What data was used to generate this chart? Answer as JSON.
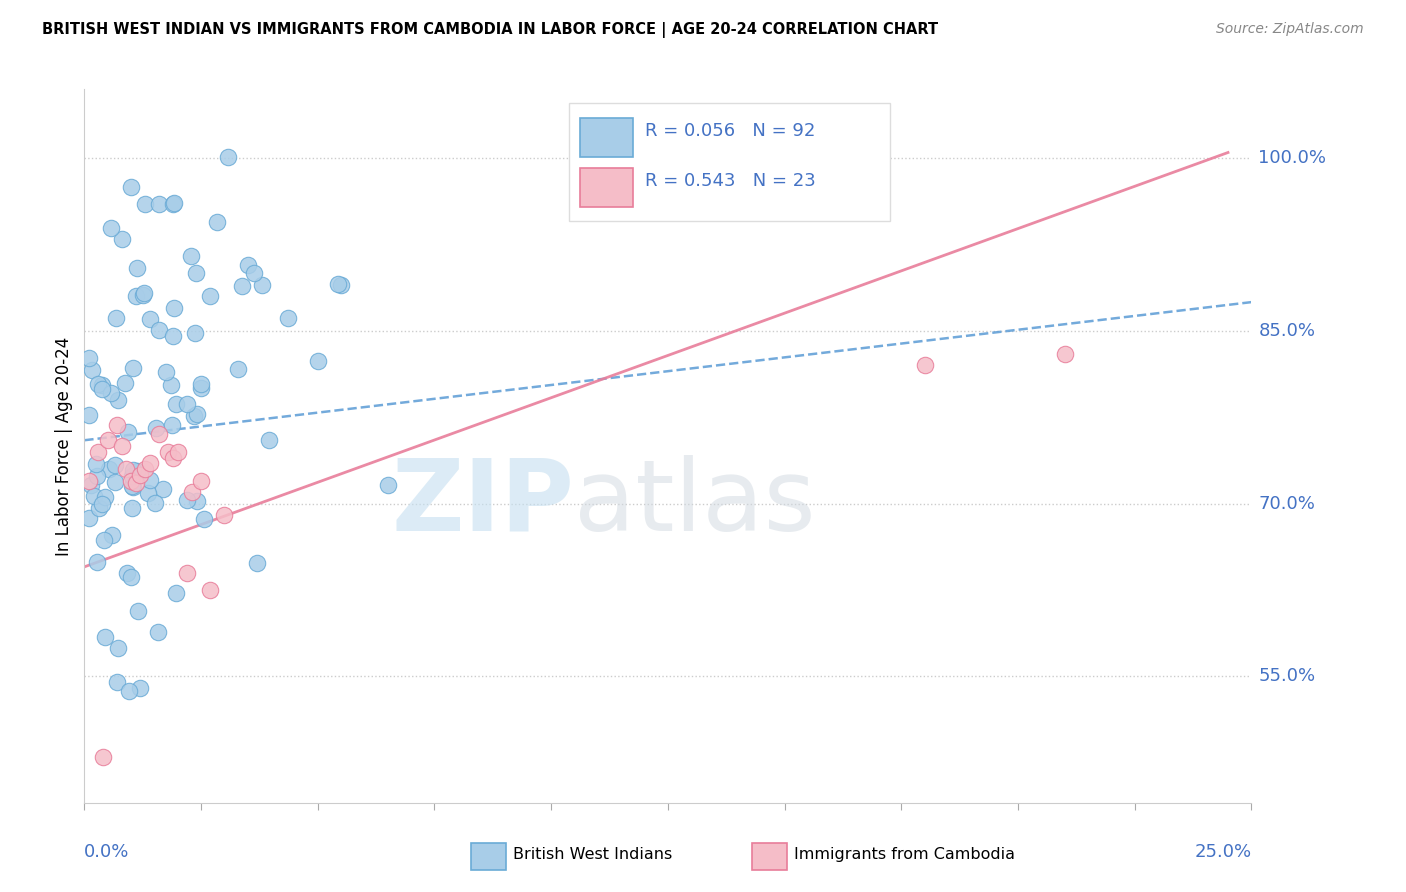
{
  "title": "BRITISH WEST INDIAN VS IMMIGRANTS FROM CAMBODIA IN LABOR FORCE | AGE 20-24 CORRELATION CHART",
  "source": "Source: ZipAtlas.com",
  "ylabel": "In Labor Force | Age 20-24",
  "ytick_labels": [
    "55.0%",
    "70.0%",
    "85.0%",
    "100.0%"
  ],
  "ytick_values": [
    0.55,
    0.7,
    0.85,
    1.0
  ],
  "xlim": [
    0.0,
    0.25
  ],
  "ylim": [
    0.44,
    1.06
  ],
  "blue_color": "#A8CDE8",
  "blue_color_dark": "#6AABD6",
  "pink_color": "#F5BDC8",
  "pink_color_dark": "#E87D9A",
  "trend_blue_color": "#5B9BD5",
  "trend_pink_color": "#E87D9A",
  "R_blue": 0.056,
  "N_blue": 92,
  "R_pink": 0.543,
  "N_pink": 23,
  "legend_label_blue": "British West Indians",
  "legend_label_pink": "Immigrants from Cambodia",
  "watermark_zip": "ZIP",
  "watermark_atlas": "atlas",
  "blue_trend_x0": 0.0,
  "blue_trend_y0": 0.755,
  "blue_trend_x1": 0.25,
  "blue_trend_y1": 0.875,
  "pink_trend_x0": 0.0,
  "pink_trend_y0": 0.645,
  "pink_trend_x1": 0.245,
  "pink_trend_y1": 1.005
}
